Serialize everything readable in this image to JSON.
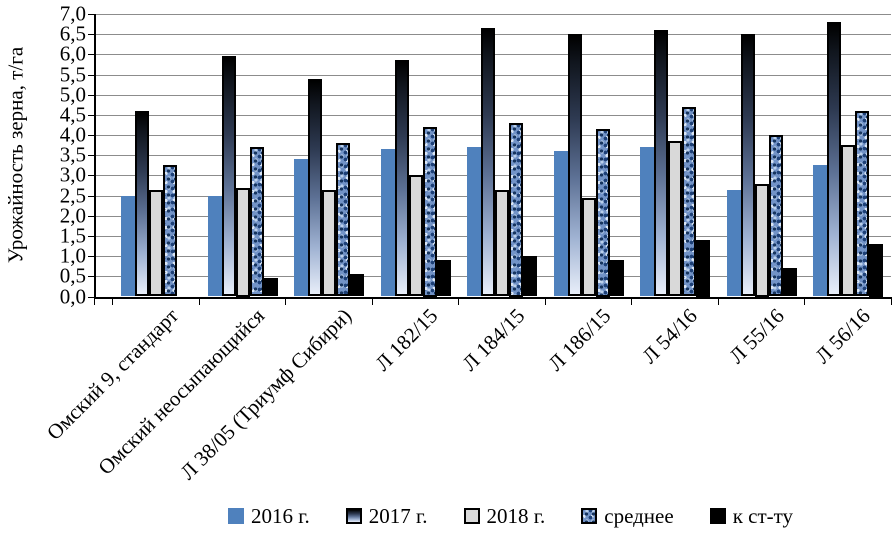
{
  "chart_data": {
    "type": "bar",
    "title": "",
    "ylabel": "Урожайность зерна, т/га",
    "xlabel": "",
    "ylim": [
      0,
      7
    ],
    "ytick_step": 0.5,
    "decimal_separator": ",",
    "grid": true,
    "legend_position": "bottom",
    "categories": [
      "Омский 9, стандарт",
      "Омский неосыпающийся",
      "Л 38/05 (Триумф Сибири)",
      "Л 182/15",
      "Л 184/15",
      "Л 186/15",
      "Л 54/16",
      "Л 55/16",
      "Л 56/16"
    ],
    "series": [
      {
        "key": "y2016",
        "name": "2016 г.",
        "values": [
          2.5,
          2.5,
          3.4,
          3.65,
          3.7,
          3.6,
          3.7,
          2.65,
          3.25
        ]
      },
      {
        "key": "y2017",
        "name": "2017 г.",
        "values": [
          4.6,
          5.95,
          5.4,
          5.85,
          6.65,
          6.5,
          6.6,
          6.5,
          6.8
        ]
      },
      {
        "key": "y2018",
        "name": "2018 г.",
        "values": [
          2.65,
          2.7,
          2.65,
          3.0,
          2.65,
          2.45,
          3.85,
          2.8,
          3.75
        ]
      },
      {
        "key": "mean",
        "name": "среднее",
        "values": [
          3.25,
          3.7,
          3.8,
          4.2,
          4.3,
          4.15,
          4.7,
          4.0,
          4.6
        ]
      },
      {
        "key": "vs_standard",
        "name": "к ст-ту",
        "values": [
          null,
          0.45,
          0.55,
          0.9,
          1.0,
          0.9,
          1.4,
          0.7,
          1.3
        ]
      }
    ],
    "colors": {
      "y2016_fill": "#4f81bd",
      "y2017_gradient_top": "#000000",
      "y2017_gradient_bottom": "#e8eef9",
      "y2018_fill": "#d9d9d9",
      "mean_fill": "#7293c7",
      "mean_speckle_dark": "#17355f",
      "mean_speckle_light": "#dae6f6",
      "vs_standard_fill": "#000000",
      "gridline": "#8c8c8c",
      "axis": "#000000"
    }
  }
}
